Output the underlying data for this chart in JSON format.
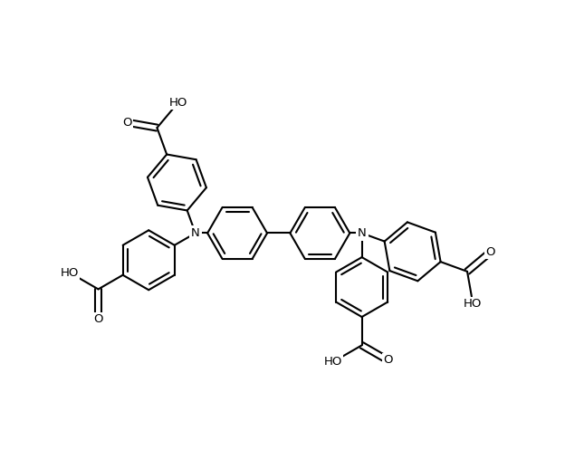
{
  "bg_color": "#ffffff",
  "line_color": "#000000",
  "line_width": 1.5,
  "font_size": 9.5,
  "figsize": [
    6.24,
    5.18
  ],
  "dpi": 100,
  "xlim": [
    -0.5,
    11.5
  ],
  "ylim": [
    -0.5,
    10.0
  ]
}
